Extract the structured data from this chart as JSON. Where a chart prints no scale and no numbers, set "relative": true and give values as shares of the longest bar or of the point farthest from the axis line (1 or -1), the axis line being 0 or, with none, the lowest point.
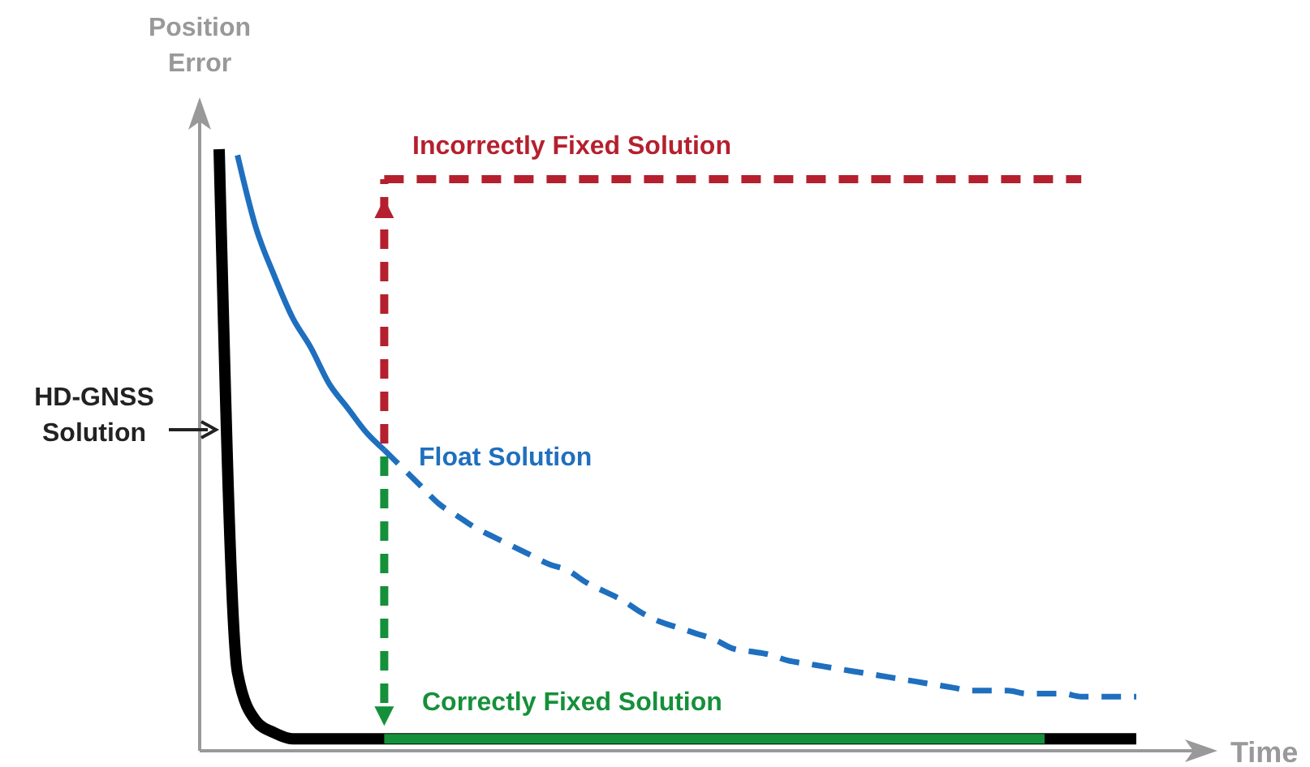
{
  "chart_data": {
    "type": "line",
    "relative": true,
    "ylabel": "Position Error",
    "xlabel": "Time",
    "categories": [
      null,
      null,
      null,
      null,
      null,
      null,
      null,
      null,
      null,
      null,
      null,
      null,
      null,
      null,
      null,
      null,
      null,
      null,
      null,
      null,
      null,
      null,
      null,
      null,
      null,
      null,
      null,
      null,
      null,
      null,
      null,
      null,
      null,
      null,
      null,
      null,
      null,
      null,
      null,
      null,
      null,
      null,
      null,
      null,
      null,
      null,
      null,
      null,
      null,
      null,
      null
    ],
    "series": [
      {
        "name": "HD-GNSS Solution",
        "color": "#000000",
        "line_style": "solid",
        "values": [
          1.0,
          0.13,
          0.05,
          0.03,
          0.02,
          0.02,
          0.02,
          0.02,
          0.02,
          0.02,
          0.02,
          0.02,
          0.02,
          0.02,
          0.02,
          0.02,
          0.02,
          0.02,
          0.02,
          0.02,
          0.02,
          0.02,
          0.02,
          0.02,
          0.02,
          0.02,
          0.02,
          0.02,
          0.02,
          0.02,
          0.02,
          0.02,
          0.02,
          0.02,
          0.02,
          0.02,
          0.02,
          0.02,
          0.02,
          0.02,
          0.02,
          0.02,
          0.02,
          0.02,
          0.02,
          0.02,
          0.02,
          0.02,
          0.02,
          0.02,
          0.02
        ]
      },
      {
        "name": "Float Solution",
        "color": "#1f6fbf",
        "line_style": "solid",
        "values": [
          null,
          0.99,
          0.87,
          0.79,
          0.72,
          0.67,
          0.61,
          0.57,
          0.53,
          0.5,
          null,
          null,
          null,
          null,
          null,
          null,
          null,
          null,
          null,
          null,
          null,
          null,
          null,
          null,
          null,
          null,
          null,
          null,
          null,
          null,
          null,
          null,
          null,
          null,
          null,
          null,
          null,
          null,
          null,
          null,
          null,
          null,
          null,
          null,
          null,
          null,
          null,
          null,
          null,
          null,
          null
        ]
      },
      {
        "color": "#1f6fbf",
        "line_style": "dashed",
        "values": [
          null,
          null,
          null,
          null,
          null,
          null,
          null,
          null,
          null,
          0.5,
          0.47,
          0.44,
          0.41,
          0.39,
          0.37,
          0.355,
          0.34,
          0.325,
          0.31,
          0.3,
          0.28,
          0.265,
          0.25,
          0.23,
          0.215,
          0.205,
          0.195,
          0.185,
          0.17,
          0.165,
          0.16,
          0.15,
          0.145,
          0.14,
          0.135,
          0.13,
          0.125,
          0.12,
          0.115,
          0.11,
          0.105,
          0.1,
          0.1,
          0.1,
          0.095,
          0.095,
          0.095,
          0.09,
          0.09,
          0.09,
          0.09
        ]
      },
      {
        "name": "Correctly Fixed Solution",
        "color": "#15903a",
        "line_style": "solid",
        "values": [
          null,
          null,
          null,
          null,
          null,
          null,
          null,
          null,
          null,
          0.02,
          0.02,
          0.02,
          0.02,
          0.02,
          0.02,
          0.02,
          0.02,
          0.02,
          0.02,
          0.02,
          0.02,
          0.02,
          0.02,
          0.02,
          0.02,
          0.02,
          0.02,
          0.02,
          0.02,
          0.02,
          0.02,
          0.02,
          0.02,
          0.02,
          0.02,
          0.02,
          0.02,
          0.02,
          0.02,
          0.02,
          0.02,
          0.02,
          0.02,
          0.02,
          0.02,
          0.02,
          null,
          null,
          null,
          null,
          null
        ]
      },
      {
        "name": "Incorrectly Fixed Solution",
        "color": "#b5202e",
        "line_style": "dashed",
        "values": [
          null,
          null,
          null,
          null,
          null,
          null,
          null,
          null,
          null,
          0.95,
          0.95,
          0.95,
          0.95,
          0.95,
          0.95,
          0.95,
          0.95,
          0.95,
          0.95,
          0.95,
          0.95,
          0.95,
          0.95,
          0.95,
          0.95,
          0.95,
          0.95,
          0.95,
          0.95,
          0.95,
          0.95,
          0.95,
          0.95,
          0.95,
          0.95,
          0.95,
          0.95,
          0.95,
          0.95,
          0.95,
          0.95,
          0.95,
          0.95,
          0.95,
          0.95,
          0.95,
          0.95,
          0.95,
          null,
          null,
          null
        ]
      }
    ]
  }
}
